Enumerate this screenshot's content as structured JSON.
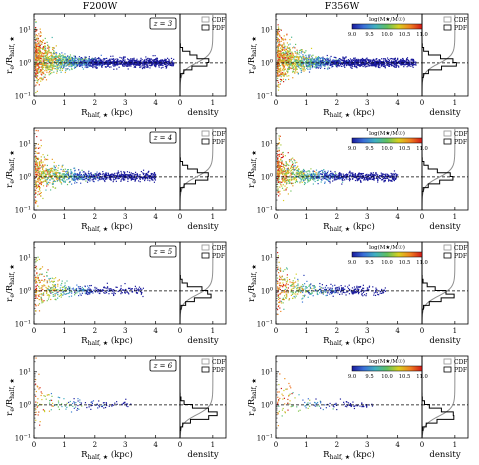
{
  "columns": [
    "F200W",
    "F356W"
  ],
  "cbar": {
    "label": "log(M★/M☉)",
    "ticks": [
      "9.0",
      "9.5",
      "10.0",
      "10.5",
      "11.0"
    ],
    "colors": [
      "#1a1a9c",
      "#3a6fd8",
      "#40b0c0",
      "#60c060",
      "#d8d020",
      "#f08020",
      "#d01818"
    ]
  },
  "legend": {
    "cdf": "CDF",
    "pdf": "PDF"
  },
  "redshifts": [
    "z = 3",
    "z = 4",
    "z = 5",
    "z = 6"
  ],
  "axes": {
    "xlabel": "R_half,★ (kpc)",
    "ylabel": "r_e/R_half,★",
    "side_xlabel": "density",
    "x_ticks": [
      "0",
      "1",
      "2",
      "3",
      "4"
    ],
    "y_ticks": [
      "10^-1",
      "10^0",
      "10^1"
    ],
    "side_ticks": [
      "0",
      "1"
    ]
  },
  "chart_data": [
    {
      "type": "scatter",
      "filter": "F200W",
      "redshift": "z = 3",
      "xlabel": "R_half,★ (kpc)",
      "ylabel": "r_e/R_half,★",
      "xlim": [
        0,
        4.8
      ],
      "ylim": [
        0.1,
        30
      ],
      "yscale": "log",
      "reference_line_y": 1,
      "n_points": 1800,
      "x_range": [
        0.05,
        4.6
      ],
      "color_by": "log(M★/M☉)",
      "side_panel": {
        "type": "histogram+cdf",
        "xlim": [
          0,
          1.4
        ],
        "pdf_peak_y": 1.0,
        "pdf_peak_density": 1.0
      }
    },
    {
      "type": "scatter",
      "filter": "F356W",
      "redshift": "z = 3",
      "xlabel": "R_half,★ (kpc)",
      "ylabel": "r_e/R_half,★",
      "xlim": [
        0,
        4.8
      ],
      "ylim": [
        0.1,
        30
      ],
      "yscale": "log",
      "reference_line_y": 1,
      "n_points": 1800,
      "x_range": [
        0.05,
        4.6
      ],
      "color_by": "log(M★/M☉)",
      "colorbar_range": [
        9.0,
        11.0
      ],
      "side_panel": {
        "type": "histogram+cdf",
        "xlim": [
          0,
          1.4
        ],
        "pdf_peak_y": 0.95,
        "pdf_peak_density": 1.05
      }
    },
    {
      "type": "scatter",
      "filter": "F200W",
      "redshift": "z = 4",
      "xlabel": "R_half,★ (kpc)",
      "ylabel": "r_e/R_half,★",
      "xlim": [
        0,
        4.8
      ],
      "ylim": [
        0.1,
        30
      ],
      "yscale": "log",
      "reference_line_y": 1,
      "n_points": 1000,
      "x_range": [
        0.05,
        4.0
      ],
      "color_by": "log(M★/M☉)",
      "side_panel": {
        "type": "histogram+cdf",
        "xlim": [
          0,
          1.4
        ],
        "pdf_peak_y": 1.0,
        "pdf_peak_density": 1.0
      }
    },
    {
      "type": "scatter",
      "filter": "F356W",
      "redshift": "z = 4",
      "xlabel": "R_half,★ (kpc)",
      "ylabel": "r_e/R_half,★",
      "xlim": [
        0,
        4.8
      ],
      "ylim": [
        0.1,
        30
      ],
      "yscale": "log",
      "reference_line_y": 1,
      "n_points": 1000,
      "x_range": [
        0.05,
        4.0
      ],
      "color_by": "log(M★/M☉)",
      "colorbar_range": [
        9.0,
        11.0
      ],
      "side_panel": {
        "type": "histogram+cdf",
        "xlim": [
          0,
          1.4
        ],
        "pdf_peak_y": 0.95,
        "pdf_peak_density": 1.0
      }
    },
    {
      "type": "scatter",
      "filter": "F200W",
      "redshift": "z = 5",
      "xlabel": "R_half,★ (kpc)",
      "ylabel": "r_e/R_half,★",
      "xlim": [
        0,
        4.8
      ],
      "ylim": [
        0.1,
        30
      ],
      "yscale": "log",
      "reference_line_y": 1,
      "n_points": 450,
      "x_range": [
        0.05,
        3.6
      ],
      "color_by": "log(M★/M☉)",
      "side_panel": {
        "type": "histogram+cdf",
        "xlim": [
          0,
          1.4
        ],
        "pdf_peak_y": 0.75,
        "pdf_peak_density": 1.1
      }
    },
    {
      "type": "scatter",
      "filter": "F356W",
      "redshift": "z = 5",
      "xlabel": "R_half,★ (kpc)",
      "ylabel": "r_e/R_half,★",
      "xlim": [
        0,
        4.8
      ],
      "ylim": [
        0.1,
        30
      ],
      "yscale": "log",
      "reference_line_y": 1,
      "n_points": 450,
      "x_range": [
        0.05,
        3.6
      ],
      "color_by": "log(M★/M☉)",
      "colorbar_range": [
        9.0,
        11.0
      ],
      "side_panel": {
        "type": "histogram+cdf",
        "xlim": [
          0,
          1.4
        ],
        "pdf_peak_y": 0.7,
        "pdf_peak_density": 0.95
      }
    },
    {
      "type": "scatter",
      "filter": "F200W",
      "redshift": "z = 6",
      "xlabel": "R_half,★ (kpc)",
      "ylabel": "r_e/R_half,★",
      "xlim": [
        0,
        4.8
      ],
      "ylim": [
        0.1,
        30
      ],
      "yscale": "log",
      "reference_line_y": 1,
      "n_points": 140,
      "x_range": [
        0.05,
        3.2
      ],
      "color_by": "log(M★/M☉)",
      "side_panel": {
        "type": "histogram+cdf",
        "xlim": [
          0,
          1.4
        ],
        "pdf_peak_y": 0.5,
        "pdf_peak_density": 1.2
      }
    },
    {
      "type": "scatter",
      "filter": "F356W",
      "redshift": "z = 6",
      "xlabel": "R_half,★ (kpc)",
      "ylabel": "r_e/R_half,★",
      "xlim": [
        0,
        4.8
      ],
      "ylim": [
        0.1,
        30
      ],
      "yscale": "log",
      "reference_line_y": 1,
      "n_points": 140,
      "x_range": [
        0.05,
        3.2
      ],
      "color_by": "log(M★/M☉)",
      "colorbar_range": [
        9.0,
        11.0
      ],
      "side_panel": {
        "type": "histogram+cdf",
        "xlim": [
          0,
          1.4
        ],
        "pdf_peak_y": 0.45,
        "pdf_peak_density": 1.05
      }
    }
  ]
}
